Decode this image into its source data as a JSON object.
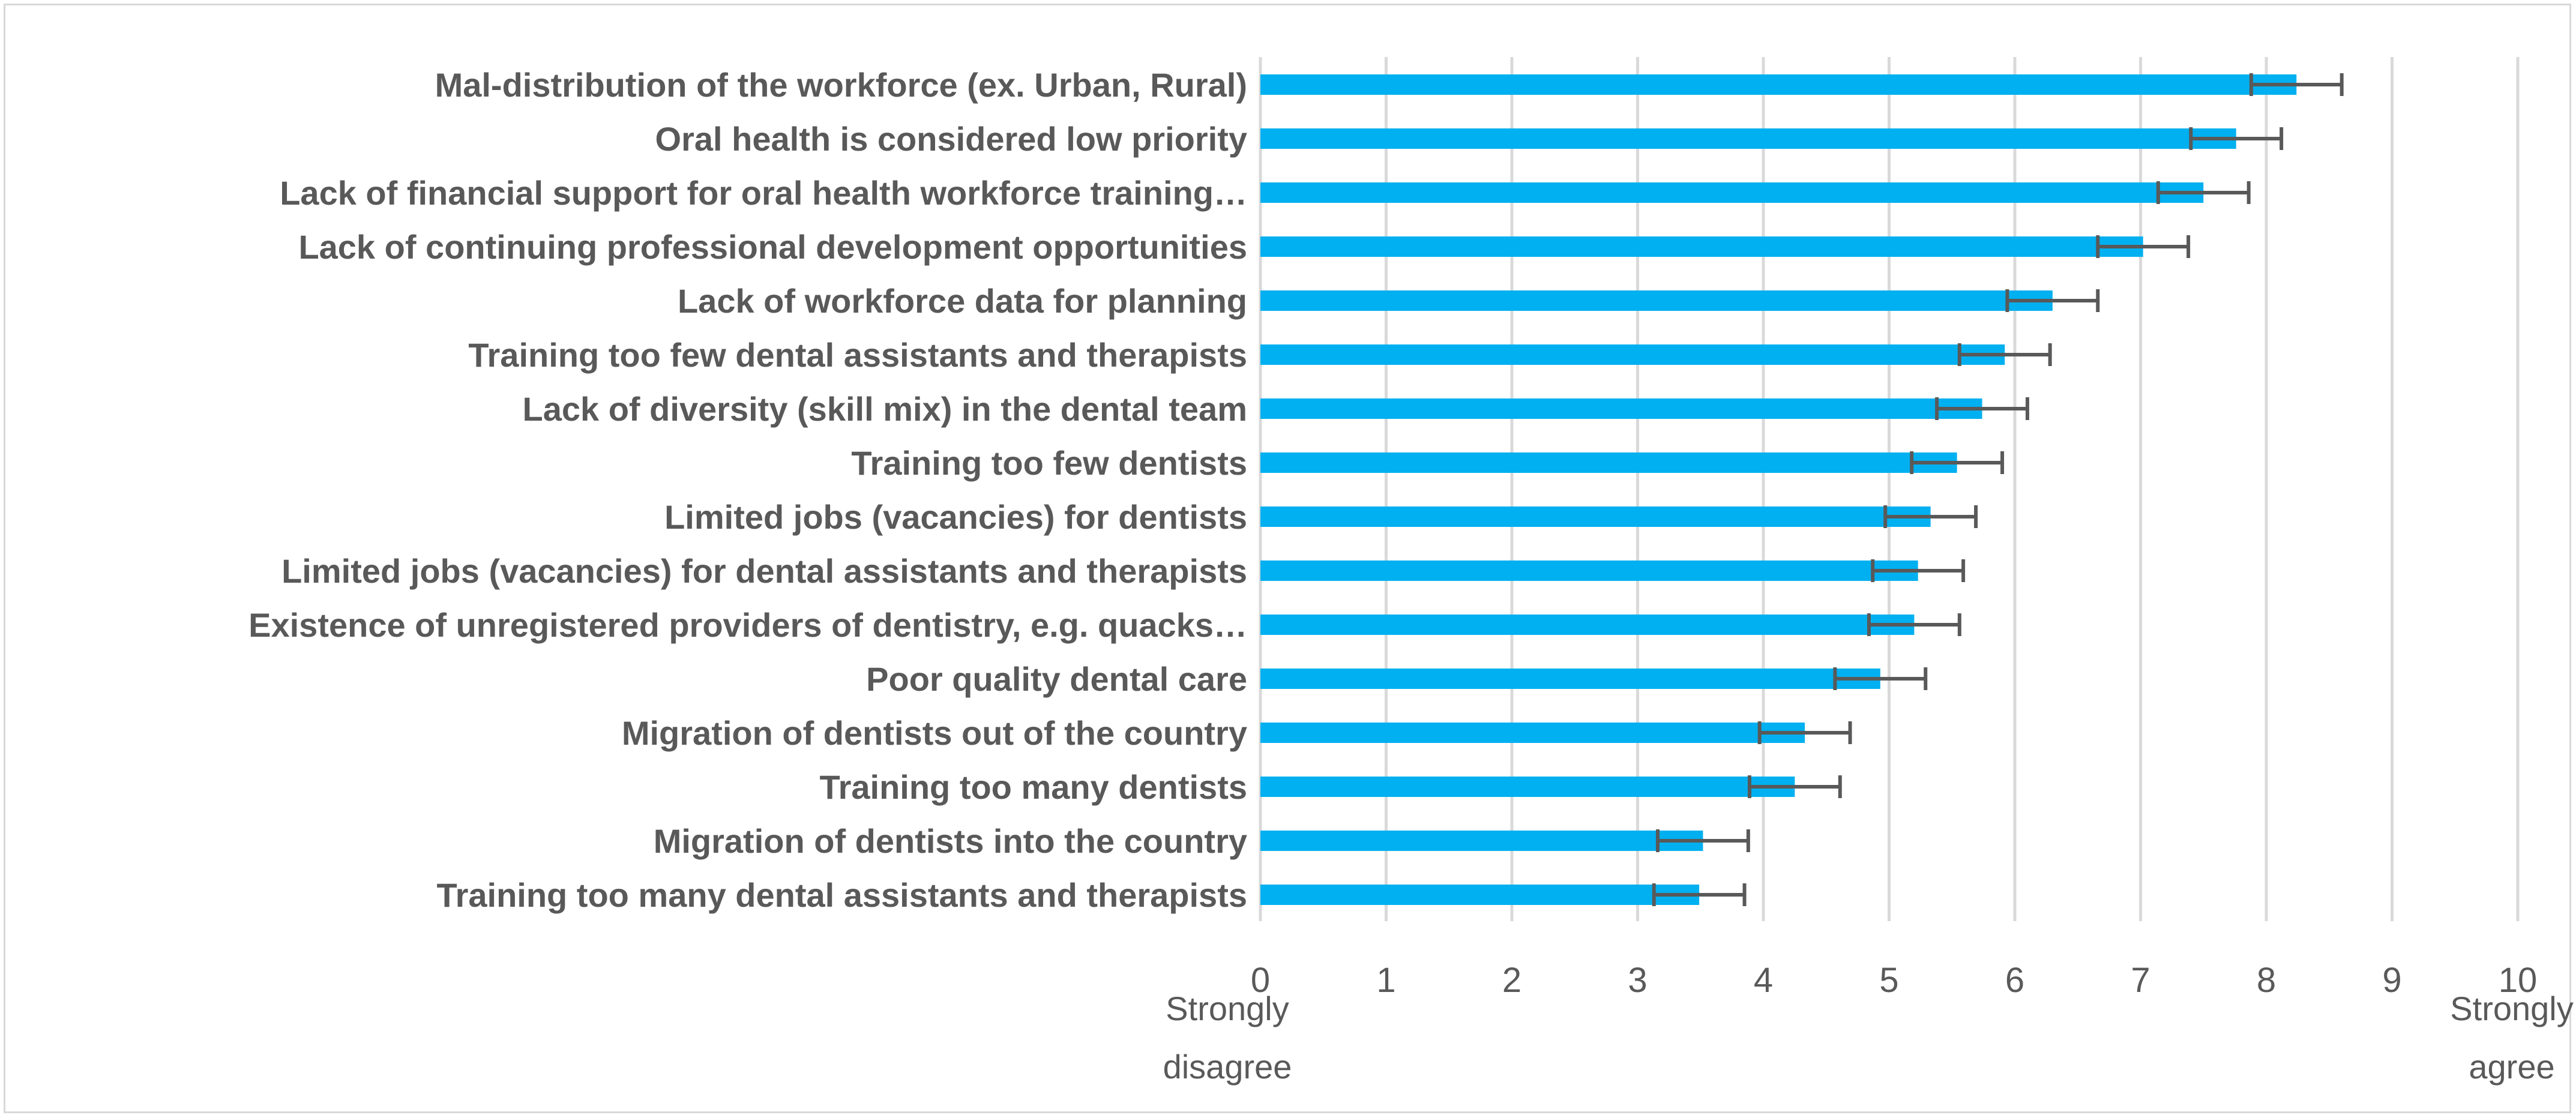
{
  "chart_data": {
    "type": "bar",
    "orientation": "horizontal",
    "title": "",
    "xlabel": "",
    "ylabel": "",
    "xlim": [
      0,
      10
    ],
    "ticks": [
      0,
      1,
      2,
      3,
      4,
      5,
      6,
      7,
      8,
      9,
      10
    ],
    "grid": true,
    "scale_anchor_low": [
      "Strongly",
      "disagree"
    ],
    "scale_anchor_high": [
      "Strongly",
      "agree"
    ],
    "colors": {
      "bar": "#00b0f0",
      "error": "#595959",
      "grid": "#d9d9d9",
      "text": "#595959"
    },
    "categories": [
      "Mal-distribution of the workforce (ex. Urban, Rural)",
      "Oral health is considered low priority",
      "Lack of financial support for oral health workforce training…",
      "Lack of continuing professional development opportunities",
      "Lack of workforce data for planning",
      "Training too few dental assistants and therapists",
      "Lack of diversity (skill mix) in the dental team",
      "Training too few dentists",
      "Limited jobs (vacancies) for dentists",
      "Limited jobs (vacancies) for dental assistants and therapists",
      "Existence of unregistered providers of dentistry, e.g. quacks…",
      "Poor quality dental care",
      "Migration of dentists out of the country",
      "Training too many dentists",
      "Migration of dentists into the country",
      "Training too many dental assistants and therapists"
    ],
    "values": [
      8.24,
      7.76,
      7.5,
      7.02,
      6.3,
      5.92,
      5.74,
      5.54,
      5.33,
      5.23,
      5.2,
      4.93,
      4.33,
      4.25,
      3.52,
      3.49
    ],
    "error_low": [
      7.88,
      7.4,
      7.14,
      6.66,
      5.94,
      5.56,
      5.38,
      5.18,
      4.97,
      4.87,
      4.84,
      4.57,
      3.97,
      3.89,
      3.16,
      3.13
    ],
    "error_high": [
      8.6,
      8.12,
      7.86,
      7.38,
      6.66,
      6.28,
      6.1,
      5.9,
      5.69,
      5.59,
      5.56,
      5.29,
      4.69,
      4.61,
      3.88,
      3.85
    ]
  }
}
